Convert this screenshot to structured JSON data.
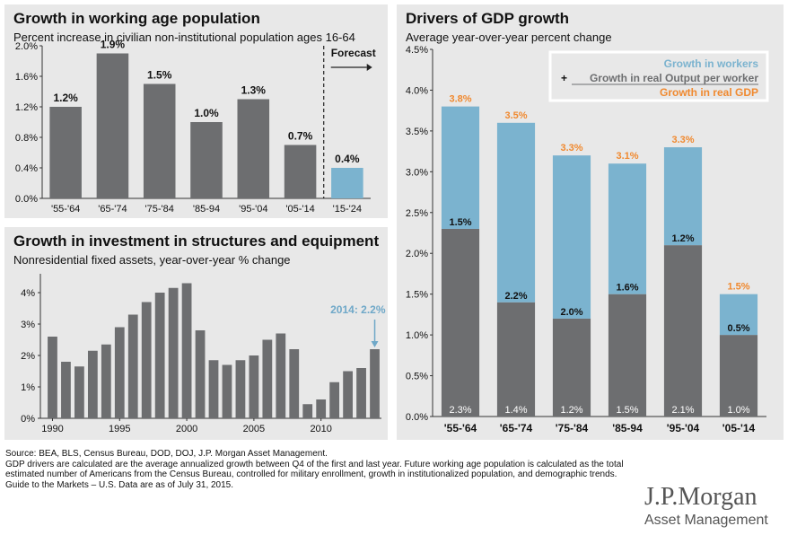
{
  "panel_working_age": {
    "title": "Growth in working age population",
    "subtitle": "Percent increase in civilian non-institutional population ages 16-64",
    "forecast_label": "Forecast",
    "chart_data": {
      "type": "bar",
      "categories": [
        "'55-'64",
        "'65-'74",
        "'75-'84",
        "'85-94",
        "'95-'04",
        "'05-'14",
        "'15-'24"
      ],
      "values": [
        1.2,
        1.9,
        1.5,
        1.0,
        1.3,
        0.7,
        0.4
      ],
      "data_labels": [
        "1.2%",
        "1.9%",
        "1.5%",
        "1.0%",
        "1.3%",
        "0.7%",
        "0.4%"
      ],
      "forecast_index": 6,
      "ylim": [
        0,
        2.0
      ],
      "yticks": [
        0,
        0.4,
        0.8,
        1.2,
        1.6,
        2.0
      ],
      "ytick_labels": [
        "0.0%",
        "0.4%",
        "0.8%",
        "1.2%",
        "1.6%",
        "2.0%"
      ],
      "colors": {
        "actual": "#6d6e70",
        "forecast": "#7bb3cf"
      }
    }
  },
  "panel_investment": {
    "title": "Growth in investment in structures and equipment",
    "subtitle": "Nonresidential fixed assets, year-over-year % change",
    "annotation": "2014: 2.2%",
    "chart_data": {
      "type": "bar",
      "x": [
        1990,
        1991,
        1992,
        1993,
        1994,
        1995,
        1996,
        1997,
        1998,
        1999,
        2000,
        2001,
        2002,
        2003,
        2004,
        2005,
        2006,
        2007,
        2008,
        2009,
        2010,
        2011,
        2012,
        2013,
        2014
      ],
      "values": [
        2.6,
        1.8,
        1.65,
        2.15,
        2.35,
        2.9,
        3.3,
        3.7,
        4.0,
        4.15,
        4.3,
        2.8,
        1.85,
        1.7,
        1.85,
        2.0,
        2.5,
        2.7,
        2.2,
        0.45,
        0.6,
        1.15,
        1.5,
        1.6,
        2.2
      ],
      "ylim": [
        0,
        4.6
      ],
      "yticks": [
        0,
        1,
        2,
        3,
        4
      ],
      "ytick_labels": [
        "0%",
        "1%",
        "2%",
        "3%",
        "4%"
      ],
      "xticks": [
        1990,
        1995,
        2000,
        2005,
        2010
      ],
      "xtick_labels": [
        "1990",
        "1995",
        "2000",
        "2005",
        "2010"
      ],
      "colors": {
        "bar": "#6d6e70",
        "annotation": "#6fa8c8"
      }
    }
  },
  "panel_gdp": {
    "title": "Drivers of GDP growth",
    "subtitle": "Average year-over-year percent change",
    "legend": {
      "workers": "Growth in workers",
      "plus": "+",
      "output": "Growth in real Output per worker",
      "gdp": "Growth in real GDP"
    },
    "chart_data": {
      "type": "bar",
      "stacked": true,
      "categories": [
        "'55-'64",
        "'65-'74",
        "'75-'84",
        "'85-94",
        "'95-'04",
        "'05-'14"
      ],
      "series": [
        {
          "name": "Growth in real Output per worker",
          "values": [
            2.3,
            1.4,
            1.2,
            1.5,
            2.1,
            1.0
          ],
          "labels": [
            "2.3%",
            "1.4%",
            "1.2%",
            "1.5%",
            "2.1%",
            "1.0%"
          ]
        },
        {
          "name": "Growth in workers",
          "values": [
            1.5,
            2.2,
            2.0,
            1.6,
            1.2,
            0.5
          ],
          "labels": [
            "1.5%",
            "2.2%",
            "2.0%",
            "1.6%",
            "1.2%",
            "0.5%"
          ]
        }
      ],
      "totals": [
        3.8,
        3.5,
        3.3,
        3.1,
        3.3,
        1.5
      ],
      "total_labels": [
        "3.8%",
        "3.5%",
        "3.3%",
        "3.1%",
        "3.3%",
        "1.5%"
      ],
      "ylim": [
        0,
        4.5
      ],
      "yticks": [
        0,
        0.5,
        1.0,
        1.5,
        2.0,
        2.5,
        3.0,
        3.5,
        4.0,
        4.5
      ],
      "ytick_labels": [
        "0.0%",
        "0.5%",
        "1.0%",
        "1.5%",
        "2.0%",
        "2.5%",
        "3.0%",
        "3.5%",
        "4.0%",
        "4.5%"
      ],
      "legend_position": "top-right",
      "colors": {
        "workers": "#7bb3cf",
        "output": "#6d6e70",
        "gdp": "#f0892f"
      }
    }
  },
  "footer": {
    "line1": "Source: BEA, BLS, Census Bureau, DOD, DOJ, J.P. Morgan Asset Management.",
    "line2": "GDP drivers are calculated are the average annualized growth between Q4 of the first and last year. Future working age population is calculated as the total estimated number of Americans from the Census Bureau, controlled for military enrollment, growth in institutionalized population, and demographic trends.",
    "line3": "Guide to the Markets – U.S. Data are as of July 31, 2015."
  },
  "logo": {
    "line1": "J.P.Morgan",
    "line2": "Asset Management"
  }
}
